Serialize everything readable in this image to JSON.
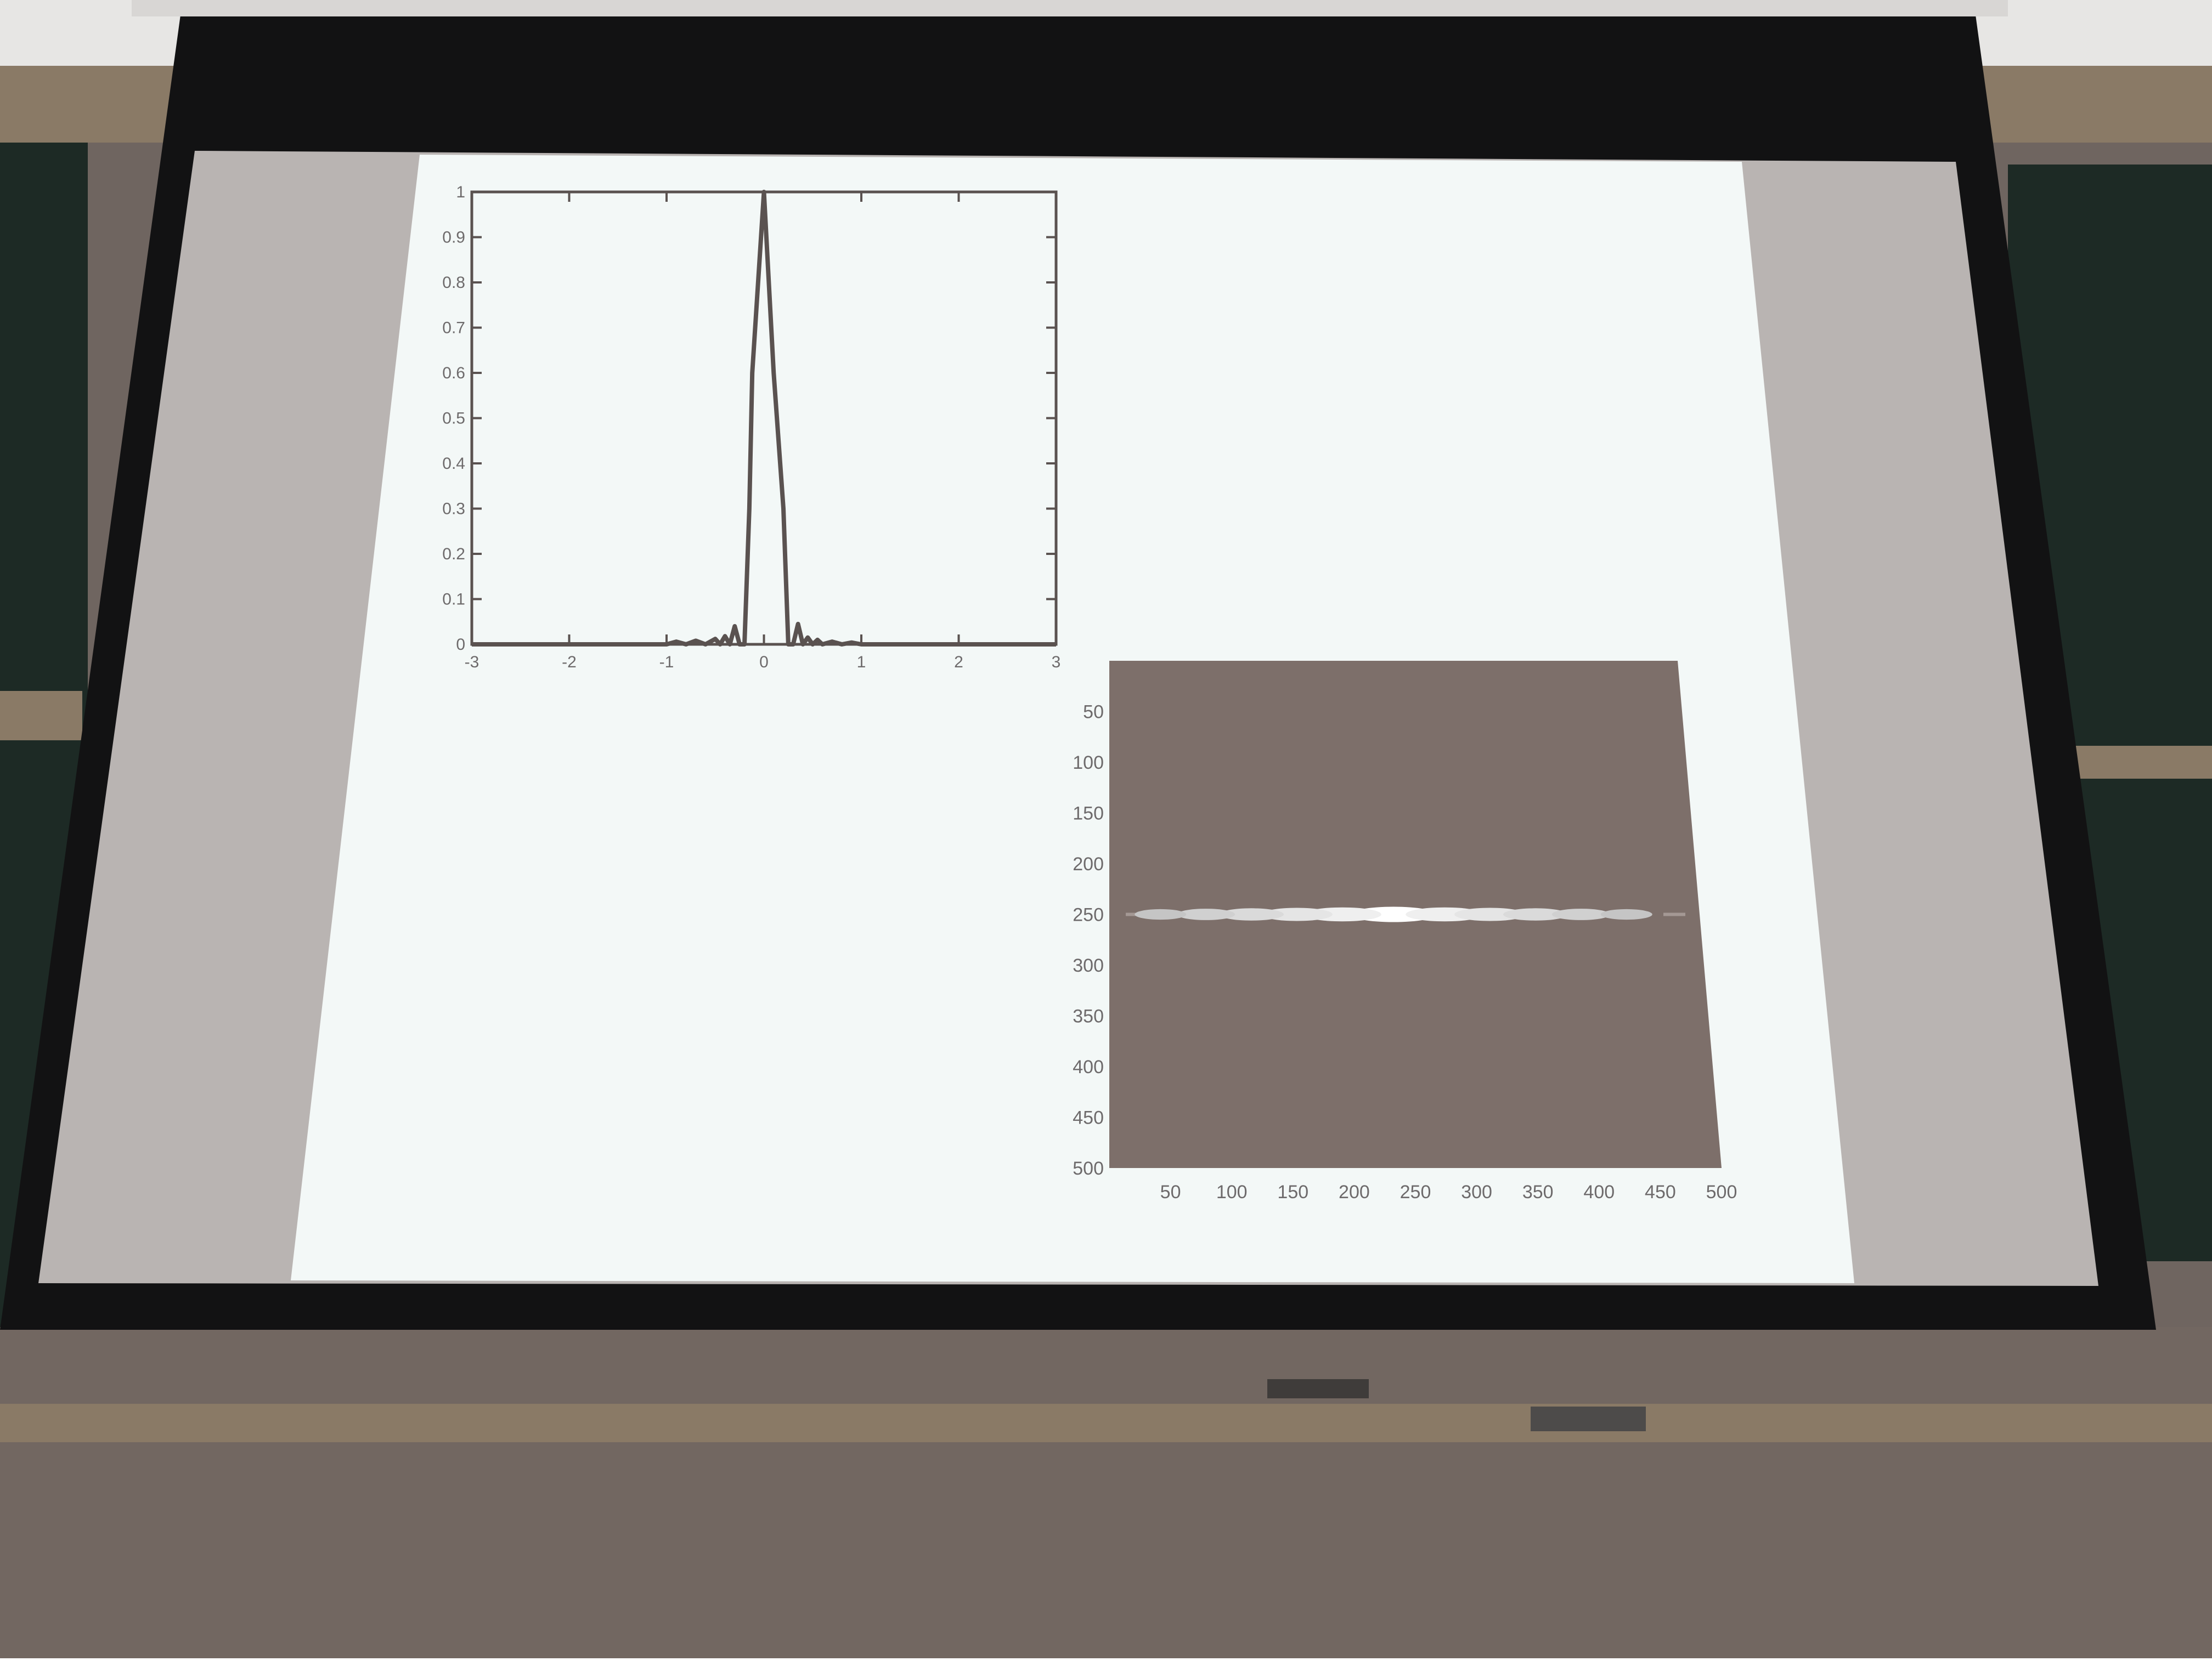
{
  "scene": {
    "colors": {
      "wall_top": "#e7e6e4",
      "blackboard": "#1d2a25",
      "wood_frame": "#8a7a66",
      "screen_housing": "#121213",
      "screen_surface": "#b9b4b2",
      "slide_bg": "#f3f8f7",
      "plot_line": "#5a5250",
      "axis_text": "#6d6a6b",
      "heatmap_bg": "#7d6f6a",
      "lower_wall": "#726761"
    }
  },
  "chart_data": [
    {
      "type": "line",
      "title": "",
      "xlabel": "",
      "ylabel": "",
      "xlim": [
        -3,
        3
      ],
      "ylim": [
        0,
        1
      ],
      "x_ticks": [
        "-3",
        "-2",
        "-1",
        "0",
        "1",
        "2",
        "3"
      ],
      "y_ticks": [
        "0",
        "0.1",
        "0.2",
        "0.3",
        "0.4",
        "0.5",
        "0.6",
        "0.7",
        "0.8",
        "0.9",
        "1"
      ],
      "grid": false,
      "x": [
        -3,
        -1.0,
        -0.9,
        -0.8,
        -0.7,
        -0.6,
        -0.5,
        -0.45,
        -0.4,
        -0.35,
        -0.3,
        -0.25,
        -0.2,
        -0.15,
        -0.12,
        0.0,
        0.1,
        0.2,
        0.25,
        0.3,
        0.35,
        0.4,
        0.45,
        0.5,
        0.55,
        0.6,
        0.7,
        0.8,
        0.9,
        1.0,
        3
      ],
      "values": [
        0,
        0,
        0.006,
        0,
        0.008,
        0,
        0.012,
        0,
        0.018,
        0,
        0.04,
        0,
        0,
        0.3,
        0.6,
        1.0,
        0.6,
        0.3,
        0,
        0,
        0.045,
        0,
        0.015,
        0,
        0.01,
        0,
        0.006,
        0,
        0.004,
        0,
        0
      ]
    },
    {
      "type": "heatmap",
      "title": "",
      "x_ticks": [
        "50",
        "100",
        "150",
        "200",
        "250",
        "300",
        "350",
        "400",
        "450",
        "500"
      ],
      "y_ticks": [
        "50",
        "100",
        "150",
        "200",
        "250",
        "300",
        "350",
        "400",
        "450",
        "500"
      ],
      "xlim": [
        0,
        500
      ],
      "ylim": [
        0,
        500
      ],
      "y_reversed": true,
      "grid": false,
      "colormap": "gray",
      "background_level": 0.45,
      "bright_row": 250,
      "bright_segments": [
        {
          "x": 250,
          "intensity": 1.0
        },
        {
          "x": 205,
          "intensity": 0.85
        },
        {
          "x": 295,
          "intensity": 0.85
        },
        {
          "x": 165,
          "intensity": 0.75
        },
        {
          "x": 335,
          "intensity": 0.75
        },
        {
          "x": 125,
          "intensity": 0.65
        },
        {
          "x": 375,
          "intensity": 0.65
        },
        {
          "x": 85,
          "intensity": 0.55
        },
        {
          "x": 415,
          "intensity": 0.55
        },
        {
          "x": 45,
          "intensity": 0.45
        },
        {
          "x": 455,
          "intensity": 0.45
        }
      ]
    }
  ]
}
